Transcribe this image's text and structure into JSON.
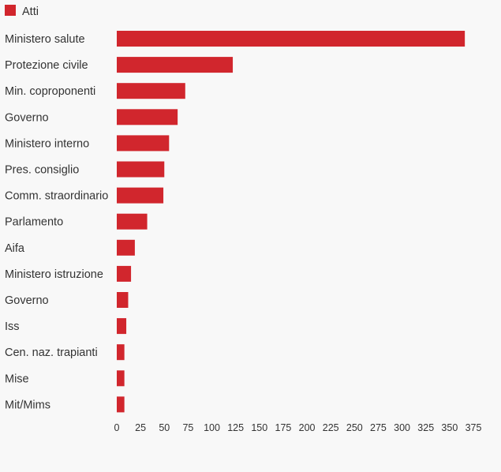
{
  "chart_data": {
    "type": "bar",
    "orientation": "horizontal",
    "title": "",
    "xlabel": "",
    "ylabel": "",
    "categories": [
      "Ministero salute",
      "Protezione civile",
      "Min. coproponenti",
      "Governo",
      "Ministero interno",
      "Pres. consiglio",
      "Comm. straordinario",
      "Parlamento",
      "Aifa",
      "Ministero istruzione",
      "Governo",
      "Iss",
      "Cen. naz. trapianti",
      "Mise",
      "Mit/Mims"
    ],
    "series": [
      {
        "name": "Atti",
        "color": "#d1262d",
        "values": [
          366,
          122,
          72,
          64,
          55,
          50,
          49,
          32,
          19,
          15,
          12,
          10,
          8,
          8,
          8
        ]
      }
    ],
    "xlim": [
      0,
      375
    ],
    "xticks": [
      "0",
      "25",
      "50",
      "75",
      "100",
      "125",
      "150",
      "175",
      "200",
      "225",
      "250",
      "275",
      "300",
      "325",
      "350",
      "375"
    ],
    "grid": false,
    "legend": {
      "position": "top-left",
      "entries": [
        "Atti"
      ]
    }
  }
}
